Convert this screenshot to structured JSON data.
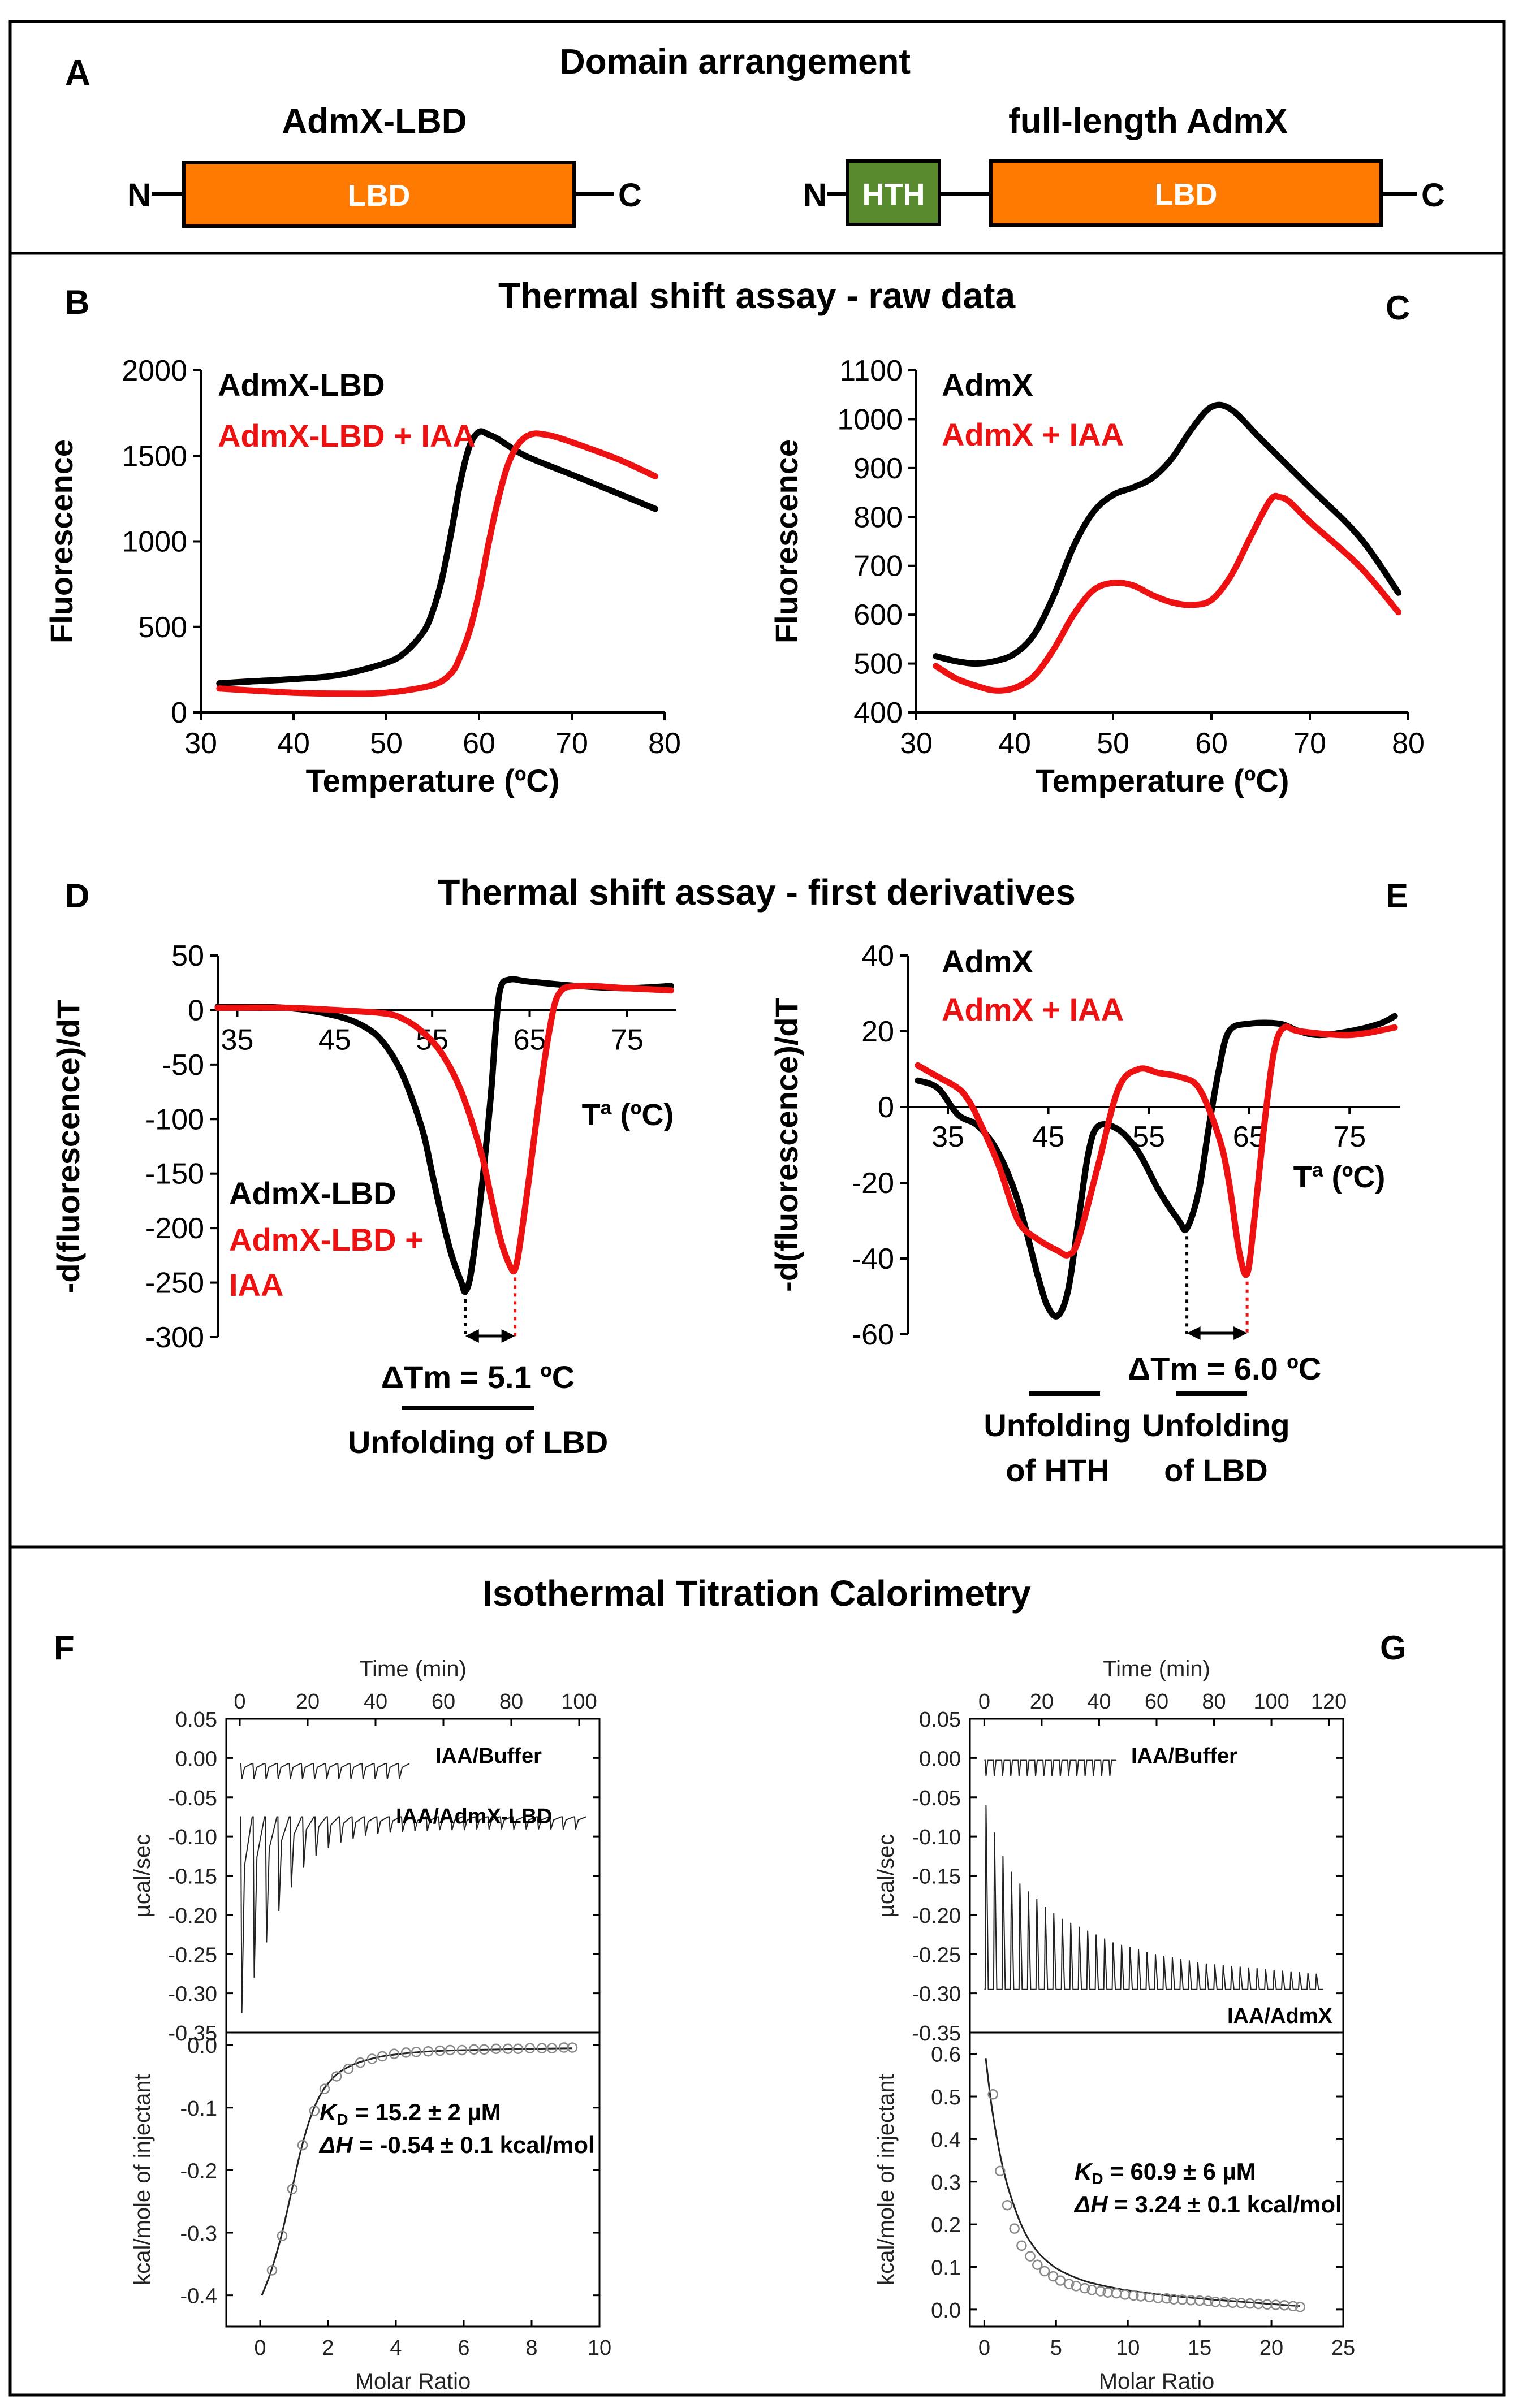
{
  "colors": {
    "black": "#000000",
    "red": "#ee1111",
    "orange": "#ff7a00",
    "green": "#5a8a2e"
  },
  "panelA": {
    "letter": "A",
    "title": "Domain arrangement",
    "lbd": {
      "name": "AdmX-LBD",
      "n": "N",
      "c": "C",
      "domain": "LBD"
    },
    "full": {
      "name": "full-length AdmX",
      "n": "N",
      "c": "C",
      "hth": "HTH",
      "domain": "LBD"
    }
  },
  "sectionBC": {
    "title": "Thermal shift assay - raw data"
  },
  "sectionDE": {
    "title": "Thermal shift assay - first derivatives"
  },
  "sectionFG": {
    "title": "Isothermal Titration Calorimetry"
  },
  "chart_data": [
    {
      "id": "B",
      "letter": "B",
      "type": "line",
      "xlabel": "Temperature (ºC)",
      "ylabel": "Fluorescence",
      "xlim": [
        30,
        80
      ],
      "ylim": [
        0,
        2000
      ],
      "xticks": [
        "30",
        "40",
        "50",
        "60",
        "70",
        "80"
      ],
      "yticks": [
        "0",
        "500",
        "1000",
        "1500",
        "2000"
      ],
      "series": [
        {
          "name": "AdmX-LBD",
          "color": "#000000",
          "x": [
            32,
            35,
            40,
            45,
            50,
            52,
            54,
            55,
            56,
            57,
            58,
            59,
            60,
            61,
            62,
            65,
            70,
            75,
            79
          ],
          "y": [
            170,
            180,
            195,
            220,
            290,
            350,
            470,
            590,
            780,
            1050,
            1350,
            1560,
            1640,
            1625,
            1600,
            1500,
            1390,
            1280,
            1190
          ]
        },
        {
          "name": "AdmX-LBD + IAA",
          "color": "#ee1111",
          "x": [
            32,
            35,
            40,
            45,
            50,
            55,
            57,
            58,
            59,
            60,
            61,
            62,
            63,
            64,
            65,
            66,
            67,
            68,
            70,
            75,
            79
          ],
          "y": [
            140,
            130,
            115,
            110,
            115,
            160,
            230,
            330,
            480,
            700,
            980,
            1230,
            1430,
            1550,
            1610,
            1630,
            1625,
            1615,
            1580,
            1480,
            1380
          ]
        }
      ]
    },
    {
      "id": "C",
      "letter": "C",
      "type": "line",
      "xlabel": "Temperature (ºC)",
      "ylabel": "Fluorescence",
      "xlim": [
        30,
        80
      ],
      "ylim": [
        400,
        1100
      ],
      "xticks": [
        "30",
        "40",
        "50",
        "60",
        "70",
        "80"
      ],
      "yticks": [
        "400",
        "500",
        "600",
        "700",
        "800",
        "900",
        "1000",
        "1100"
      ],
      "series": [
        {
          "name": "AdmX",
          "color": "#000000",
          "x": [
            32,
            34,
            36,
            38,
            40,
            42,
            44,
            46,
            48,
            50,
            52,
            54,
            56,
            58,
            60,
            62,
            65,
            70,
            75,
            79
          ],
          "y": [
            515,
            505,
            500,
            505,
            520,
            560,
            640,
            740,
            810,
            845,
            860,
            880,
            920,
            980,
            1025,
            1020,
            960,
            860,
            760,
            645
          ]
        },
        {
          "name": "AdmX + IAA",
          "color": "#ee1111",
          "x": [
            32,
            34,
            36,
            38,
            40,
            42,
            44,
            46,
            48,
            50,
            52,
            54,
            56,
            58,
            60,
            62,
            64,
            66,
            67,
            68,
            70,
            75,
            79
          ],
          "y": [
            495,
            470,
            455,
            445,
            450,
            475,
            530,
            600,
            650,
            665,
            660,
            640,
            625,
            620,
            630,
            680,
            760,
            835,
            840,
            830,
            790,
            700,
            605
          ]
        }
      ]
    },
    {
      "id": "D",
      "letter": "D",
      "type": "line",
      "xlabel": "Tª (ºC)",
      "ylabel": "-d(fluorescence)/dT",
      "xlim": [
        33,
        80
      ],
      "ylim": [
        -300,
        50
      ],
      "xticks": [
        "35",
        "45",
        "55",
        "65",
        "75"
      ],
      "yticks": [
        "-300",
        "-250",
        "-200",
        "-150",
        "-100",
        "-50",
        "0",
        "50"
      ],
      "delta_label": "ΔTm = 5.1 ºC",
      "bar_label": "Unfolding of LBD",
      "tm": [
        58.4,
        63.5
      ],
      "series": [
        {
          "name": "AdmX-LBD",
          "color": "#000000",
          "x": [
            33,
            40,
            45,
            48,
            50,
            52,
            54,
            55,
            56,
            57,
            58,
            58.4,
            59,
            60,
            61,
            61.5,
            62,
            63,
            65,
            70,
            75,
            79.5
          ],
          "y": [
            3,
            2,
            -5,
            -15,
            -30,
            -60,
            -110,
            -150,
            -190,
            -225,
            -250,
            -258,
            -240,
            -170,
            -80,
            -20,
            20,
            28,
            26,
            22,
            20,
            22
          ]
        },
        {
          "name": "AdmX-LBD + IAA",
          "color": "#ee1111",
          "x": [
            33,
            40,
            45,
            50,
            52,
            54,
            56,
            58,
            60,
            61,
            62,
            63,
            63.5,
            64,
            65,
            66,
            67,
            68,
            70,
            75,
            79.5
          ],
          "y": [
            2,
            2,
            0,
            -3,
            -8,
            -20,
            -40,
            -75,
            -130,
            -170,
            -210,
            -235,
            -238,
            -215,
            -150,
            -80,
            -20,
            15,
            22,
            20,
            18
          ]
        }
      ]
    },
    {
      "id": "E",
      "letter": "E",
      "type": "line",
      "xlabel": "Tª (ºC)",
      "ylabel": "-d(fluorescence)/dT",
      "xlim": [
        31,
        80
      ],
      "ylim": [
        -60,
        40
      ],
      "xticks": [
        "35",
        "45",
        "55",
        "65",
        "75"
      ],
      "yticks": [
        "-60",
        "-40",
        "-20",
        "0",
        "20",
        "40"
      ],
      "delta_label": "ΔTm = 6.0 ºC",
      "hth_label_1": "Unfolding",
      "hth_label_2": "of HTH",
      "lbd_label_1": "Unfolding",
      "lbd_label_2": "of LBD",
      "tm": [
        58.8,
        64.8
      ],
      "series": [
        {
          "name": "AdmX",
          "color": "#000000",
          "x": [
            32,
            34,
            36,
            38,
            40,
            42,
            44,
            45,
            46,
            47,
            48,
            49,
            50,
            52,
            54,
            56,
            58,
            58.8,
            60,
            61,
            62,
            63,
            65,
            68,
            70,
            72,
            75,
            78,
            79.5
          ],
          "y": [
            7,
            5,
            -2,
            -5,
            -12,
            -25,
            -45,
            -53,
            -55,
            -48,
            -30,
            -12,
            -5,
            -6,
            -12,
            -22,
            -30,
            -32,
            -22,
            -5,
            10,
            20,
            22,
            22,
            20,
            19,
            20,
            22,
            24
          ]
        },
        {
          "name": "AdmX + IAA",
          "color": "#ee1111",
          "x": [
            32,
            34,
            36,
            37,
            38,
            40,
            42,
            44,
            46,
            47,
            48,
            50,
            52,
            54,
            56,
            58,
            60,
            62,
            63,
            64,
            64.8,
            65.5,
            66.5,
            67.5,
            68.5,
            70,
            75,
            79.5
          ],
          "y": [
            11,
            8,
            5,
            2,
            -3,
            -15,
            -30,
            -35,
            -38,
            -39,
            -35,
            -15,
            5,
            10,
            9,
            8,
            5,
            -8,
            -20,
            -38,
            -44,
            -30,
            -5,
            15,
            21,
            20,
            19,
            21
          ]
        }
      ]
    },
    {
      "id": "F-top",
      "letter": "F",
      "type": "line",
      "xlabel": "Time (min)",
      "ylabel": "µcal/sec",
      "xlim": [
        -4,
        106
      ],
      "ylim": [
        -0.35,
        0.05
      ],
      "xticks": [
        "0",
        "20",
        "40",
        "60",
        "80",
        "100"
      ],
      "yticks": [
        "-0.35",
        "-0.30",
        "-0.25",
        "-0.20",
        "-0.15",
        "-0.10",
        "-0.05",
        "0.00",
        "0.05"
      ],
      "series": [
        {
          "name": "IAA/Buffer",
          "baseline": -0.007,
          "t_start": 0,
          "t_end": 50,
          "n": 14,
          "peak_depths": [
            0.02,
            0.02,
            0.02,
            0.02,
            0.02,
            0.02,
            0.02,
            0.02,
            0.02,
            0.02,
            0.02,
            0.02,
            0.02,
            0.02
          ]
        },
        {
          "name": "IAA/AdmX-LBD",
          "baseline": -0.075,
          "t_start": 0,
          "t_end": 102,
          "n": 28,
          "peak_depths": [
            0.25,
            0.205,
            0.16,
            0.12,
            0.09,
            0.065,
            0.05,
            0.04,
            0.033,
            0.028,
            0.024,
            0.022,
            0.02,
            0.019,
            0.018,
            0.018,
            0.017,
            0.017,
            0.017,
            0.016,
            0.016,
            0.016,
            0.016,
            0.016,
            0.016,
            0.016,
            0.016,
            0.016
          ]
        }
      ]
    },
    {
      "id": "F-bottom",
      "type": "scatter",
      "xlabel": "Molar Ratio",
      "ylabel": "kcal/mole of injectant",
      "xlim": [
        -1,
        10
      ],
      "ylim": [
        -0.45,
        0.02
      ],
      "xticks": [
        "0",
        "2",
        "4",
        "6",
        "8",
        "10"
      ],
      "yticks": [
        "-0.4",
        "-0.3",
        "-0.2",
        "-0.1",
        "0.0"
      ],
      "kd_sym": "K",
      "kd_sub": "D",
      "kd_val": " = 15.2 ± 2 µM",
      "dh_sym": "ΔH",
      "dh_val": " = -0.54 ± 0.1 kcal/mol",
      "x": [
        0.35,
        0.65,
        0.95,
        1.25,
        1.6,
        1.9,
        2.25,
        2.6,
        2.95,
        3.3,
        3.6,
        3.95,
        4.3,
        4.6,
        4.95,
        5.3,
        5.6,
        5.95,
        6.3,
        6.6,
        6.95,
        7.3,
        7.6,
        7.95,
        8.3,
        8.6,
        8.95,
        9.2
      ],
      "y": [
        -0.36,
        -0.305,
        -0.23,
        -0.16,
        -0.105,
        -0.07,
        -0.05,
        -0.038,
        -0.028,
        -0.022,
        -0.018,
        -0.014,
        -0.012,
        -0.011,
        -0.01,
        -0.009,
        -0.008,
        -0.008,
        -0.007,
        -0.007,
        -0.006,
        -0.006,
        -0.006,
        -0.005,
        -0.005,
        -0.005,
        -0.004,
        -0.004
      ],
      "fit_x": [
        0.05,
        0.3,
        0.6,
        0.9,
        1.2,
        1.5,
        1.8,
        2.1,
        2.4,
        2.8,
        3.2,
        3.6,
        4.0,
        4.5,
        5,
        6,
        7,
        8,
        9.2
      ],
      "fit_y": [
        -0.4,
        -0.365,
        -0.31,
        -0.24,
        -0.168,
        -0.113,
        -0.077,
        -0.055,
        -0.041,
        -0.03,
        -0.023,
        -0.018,
        -0.015,
        -0.012,
        -0.01,
        -0.008,
        -0.007,
        -0.006,
        -0.005
      ]
    },
    {
      "id": "G-top",
      "letter": "G",
      "type": "line",
      "xlabel": "Time (min)",
      "ylabel": "µcal/sec",
      "xlim": [
        -5,
        125
      ],
      "ylim": [
        -0.35,
        0.05
      ],
      "xticks": [
        "0",
        "20",
        "40",
        "60",
        "80",
        "100",
        "120"
      ],
      "yticks": [
        "-0.35",
        "-0.30",
        "-0.25",
        "-0.20",
        "-0.15",
        "-0.10",
        "-0.05",
        "0.00",
        "0.05"
      ],
      "series": [
        {
          "name": "IAA/Buffer",
          "baseline": -0.003,
          "t_start": 0,
          "t_end": 46,
          "n": 16,
          "spike_up": 0.02
        },
        {
          "name": "IAA/AdmX",
          "baseline": -0.295,
          "t_start": 0,
          "t_end": 118,
          "n": 40,
          "spike_tops": [
            -0.06,
            -0.095,
            -0.125,
            -0.145,
            -0.16,
            -0.17,
            -0.18,
            -0.19,
            -0.198,
            -0.205,
            -0.21,
            -0.215,
            -0.22,
            -0.225,
            -0.23,
            -0.235,
            -0.238,
            -0.241,
            -0.244,
            -0.247,
            -0.25,
            -0.252,
            -0.254,
            -0.256,
            -0.258,
            -0.26,
            -0.262,
            -0.263,
            -0.264,
            -0.265,
            -0.266,
            -0.267,
            -0.268,
            -0.269,
            -0.27,
            -0.271,
            -0.272,
            -0.273,
            -0.274,
            -0.275
          ]
        }
      ],
      "label_admx": "IAA/AdmX"
    },
    {
      "id": "G-bottom",
      "type": "scatter",
      "xlabel": "Molar Ratio",
      "ylabel": "kcal/mole of injectant",
      "xlim": [
        -1,
        25
      ],
      "ylim": [
        -0.04,
        0.65
      ],
      "xticks": [
        "0",
        "5",
        "10",
        "15",
        "20",
        "25"
      ],
      "yticks": [
        "0.0",
        "0.1",
        "0.2",
        "0.3",
        "0.4",
        "0.5",
        "0.6"
      ],
      "kd_sym": "K",
      "kd_sub": "D",
      "kd_val": " = 60.9 ± 6 µM",
      "dh_sym": "ΔH",
      "dh_val": " = 3.24 ± 0.1 kcal/mol",
      "x": [
        0.6,
        1.1,
        1.6,
        2.1,
        2.6,
        3.2,
        3.7,
        4.2,
        4.8,
        5.3,
        5.9,
        6.4,
        7.0,
        7.5,
        8.1,
        8.6,
        9.2,
        9.8,
        10.4,
        10.9,
        11.5,
        12.1,
        12.7,
        13.2,
        13.8,
        14.4,
        15.0,
        15.6,
        16.1,
        16.7,
        17.3,
        17.9,
        18.5,
        19.1,
        19.7,
        20.3,
        20.9,
        21.5,
        22.0
      ],
      "y": [
        0.505,
        0.325,
        0.245,
        0.19,
        0.15,
        0.125,
        0.105,
        0.09,
        0.078,
        0.068,
        0.06,
        0.055,
        0.05,
        0.046,
        0.043,
        0.04,
        0.038,
        0.035,
        0.033,
        0.031,
        0.029,
        0.027,
        0.026,
        0.024,
        0.023,
        0.022,
        0.021,
        0.02,
        0.018,
        0.017,
        0.016,
        0.015,
        0.014,
        0.013,
        0.012,
        0.011,
        0.01,
        0.008,
        0.006
      ],
      "fit_x": [
        0.1,
        0.5,
        1,
        1.5,
        2,
        2.5,
        3,
        3.5,
        4,
        5,
        6,
        7,
        8,
        9,
        10,
        12,
        14,
        16,
        18,
        20,
        22
      ],
      "fit_y": [
        0.59,
        0.48,
        0.38,
        0.305,
        0.25,
        0.205,
        0.17,
        0.145,
        0.125,
        0.097,
        0.08,
        0.067,
        0.058,
        0.051,
        0.045,
        0.036,
        0.029,
        0.023,
        0.018,
        0.013,
        0.008
      ]
    }
  ]
}
